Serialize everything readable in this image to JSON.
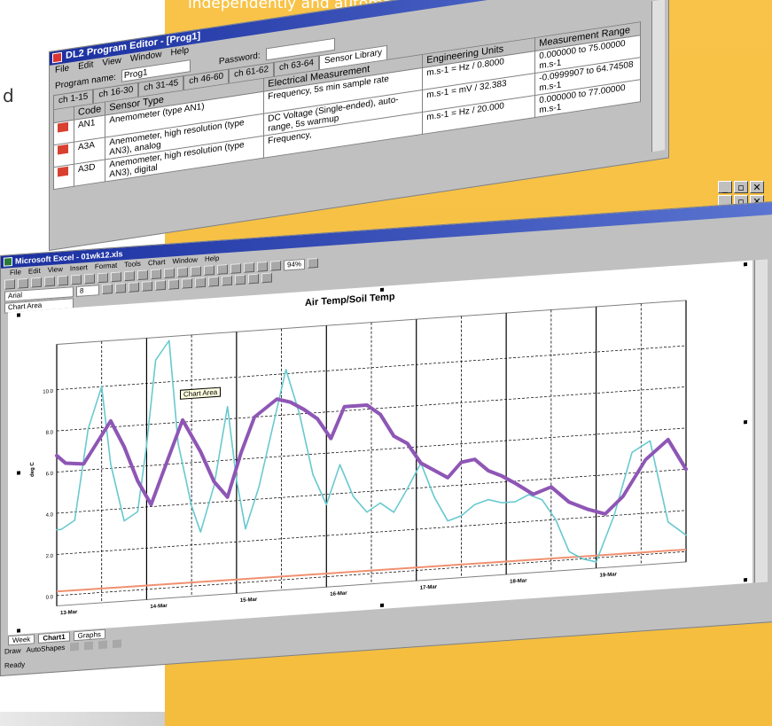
{
  "caption": "independently and automatically.",
  "stray_text": "d",
  "window_buttons": {
    "min": "_",
    "max": "□",
    "restore": "▫",
    "close": "✕"
  },
  "dl2": {
    "title": "DL2 Program Editor - [Prog1]",
    "menu": [
      "File",
      "Edit",
      "View",
      "Window",
      "Help"
    ],
    "program_name_label": "Program name:",
    "program_name_value": "Prog1",
    "password_label": "Password:",
    "password_value": "",
    "tabs": [
      "ch 1-15",
      "ch 16-30",
      "ch 31-45",
      "ch 46-60",
      "ch 61-62",
      "ch 63-64",
      "Sensor Library"
    ],
    "columns": [
      "Code",
      "Sensor Type",
      "Electrical Measurement",
      "Engineering Units",
      "Measurement Range"
    ],
    "rows": [
      {
        "code": "AN1",
        "type": "Anemometer (type AN1)",
        "elec": "Frequency, 5s min sample rate",
        "units": "m.s-1 = Hz / 0.8000",
        "range": "0.000000 to 75.00000 m.s-1"
      },
      {
        "code": "A3A",
        "type": "Anemometer, high resolution (type AN3), analog",
        "elec": "DC Voltage (Single-ended), auto-range, 5s warmup",
        "units": "m.s-1 = mV / 32.383",
        "range": "-0.0999907 to 64.74508 m.s-1"
      },
      {
        "code": "A3D",
        "type": "Anemometer, high resolution (type AN3), digital",
        "elec": "Frequency,",
        "units": "m.s-1 = Hz / 20.000",
        "range": "0.000000 to 77.00000 m.s-1"
      }
    ]
  },
  "excel": {
    "title": "Microsoft Excel - 01wk12.xls",
    "menu": [
      "File",
      "Edit",
      "View",
      "Insert",
      "Format",
      "Tools",
      "Chart",
      "Window",
      "Help"
    ],
    "font_name": "Arial",
    "font_size": "8",
    "zoom": "94%",
    "name_box": "Chart Area",
    "tooltip": "Chart Area",
    "sheet_tabs": [
      "Week",
      "Chart1",
      "Graphs"
    ],
    "draw_label": "Draw",
    "autoshapes_label": "AutoShapes",
    "status": "Ready"
  },
  "chart_data": {
    "type": "line",
    "title": "Air Temp/Soil Temp",
    "ylabel": "deg C",
    "xlabel": "",
    "x_ticks": [
      "13-Mar",
      "14-Mar",
      "15-Mar",
      "16-Mar",
      "17-Mar",
      "18-Mar",
      "19-Mar"
    ],
    "y_ticks": [
      "0.0",
      "2.0",
      "4.0",
      "6.0",
      "8.0",
      "10.0"
    ],
    "xlim": [
      0,
      7
    ],
    "ylim": [
      -0.5,
      12.2
    ],
    "grid": true,
    "legend": "none",
    "series": [
      {
        "color": "#8e56b5",
        "width": 4,
        "x": [
          0,
          0.1,
          0.3,
          0.45,
          0.6,
          0.75,
          0.9,
          1.05,
          1.25,
          1.4,
          1.6,
          1.75,
          1.9,
          2.05,
          2.2,
          2.45,
          2.6,
          2.75,
          2.9,
          3.05,
          3.2,
          3.45,
          3.6,
          3.75,
          3.9,
          4.05,
          4.2,
          4.35,
          4.5,
          4.65,
          4.8,
          4.95,
          5.1,
          5.3,
          5.5,
          5.7,
          5.9,
          6.1,
          6.3,
          6.55,
          6.8,
          7.0
        ],
        "y": [
          6.8,
          6.4,
          6.3,
          7.3,
          8.3,
          7.0,
          5.3,
          4.1,
          6.4,
          8.1,
          6.5,
          5.0,
          4.2,
          6.3,
          8.0,
          8.8,
          8.6,
          8.2,
          7.7,
          6.7,
          8.2,
          8.2,
          7.7,
          6.6,
          6.2,
          5.2,
          4.8,
          4.4,
          5.1,
          5.2,
          4.6,
          4.3,
          3.9,
          3.3,
          3.6,
          2.8,
          2.4,
          2.1,
          2.9,
          4.6,
          5.5,
          4.0
        ]
      },
      {
        "color": "#68c9cf",
        "width": 1.6,
        "x": [
          0,
          0.05,
          0.2,
          0.35,
          0.5,
          0.6,
          0.75,
          0.9,
          1.0,
          1.1,
          1.25,
          1.35,
          1.5,
          1.6,
          1.75,
          1.9,
          2.0,
          2.1,
          2.25,
          2.4,
          2.55,
          2.7,
          2.85,
          3.0,
          3.15,
          3.3,
          3.45,
          3.6,
          3.75,
          3.9,
          4.05,
          4.2,
          4.35,
          4.5,
          4.65,
          4.8,
          4.95,
          5.1,
          5.25,
          5.4,
          5.55,
          5.7,
          5.85,
          6.0,
          6.2,
          6.4,
          6.6,
          6.8,
          7.0
        ],
        "y": [
          3.2,
          3.2,
          3.6,
          8.0,
          10.0,
          6.2,
          3.4,
          3.8,
          7.0,
          11.1,
          12.0,
          7.0,
          3.9,
          2.6,
          4.8,
          8.6,
          5.0,
          2.6,
          4.6,
          7.4,
          10.2,
          8.0,
          5.0,
          3.5,
          5.4,
          3.8,
          3.0,
          3.4,
          2.9,
          4.0,
          5.2,
          3.5,
          2.3,
          2.5,
          3.0,
          3.2,
          3.0,
          3.0,
          3.3,
          3.0,
          2.0,
          0.4,
          0.0,
          -0.2,
          2.0,
          5.0,
          5.5,
          1.5,
          0.8
        ]
      }
    ],
    "baseline": {
      "color": "#f09070",
      "y": [
        0.2,
        0.1
      ]
    }
  }
}
